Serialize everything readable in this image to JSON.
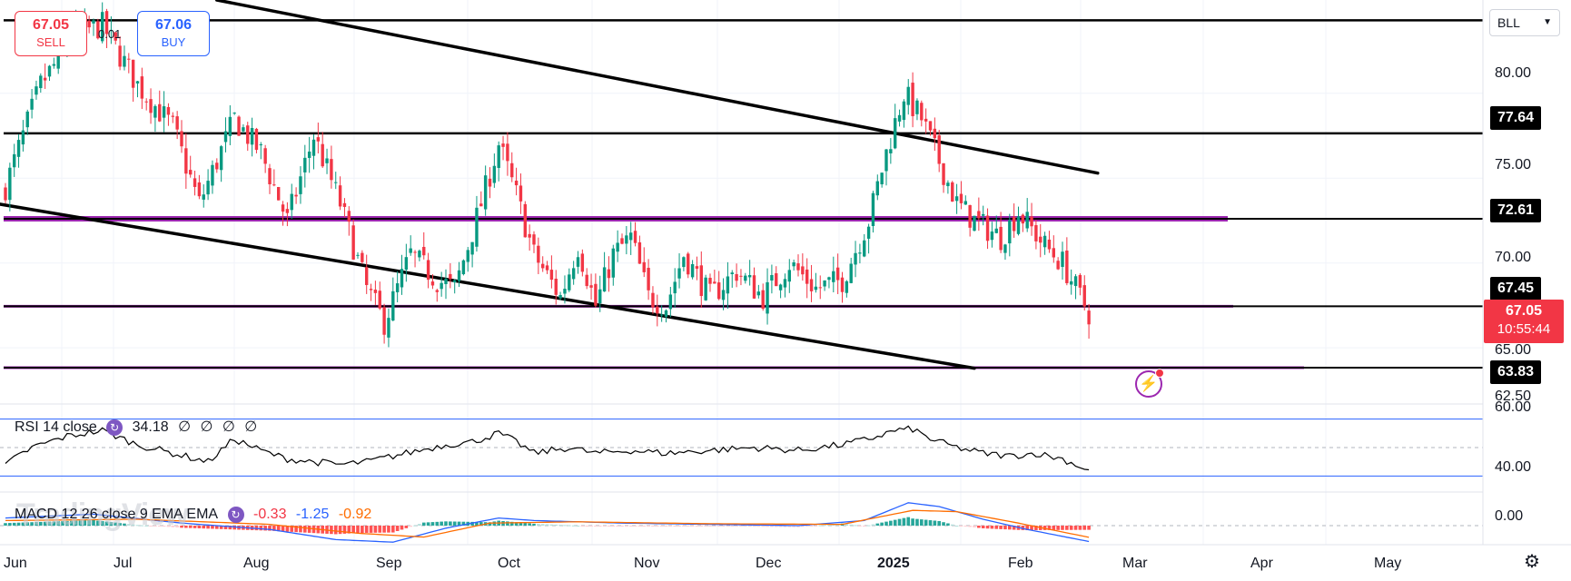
{
  "trade": {
    "sell_price": "67.05",
    "sell_label": "SELL",
    "buy_price": "67.06",
    "buy_label": "BUY",
    "spread": "0.01"
  },
  "symbol": {
    "label": "BLL"
  },
  "price_axis": {
    "labels": [
      {
        "value": 80,
        "text": "80.00"
      },
      {
        "value": 75,
        "text": "75.00"
      },
      {
        "value": 70,
        "text": "70.00"
      },
      {
        "value": 65,
        "text": "65.00"
      },
      {
        "value": 62.5,
        "text": "62.50"
      }
    ],
    "tags": [
      {
        "value": 77.64,
        "text": "77.64"
      },
      {
        "value": 72.61,
        "text": "72.61"
      },
      {
        "value": 67.45,
        "text": "67.45"
      },
      {
        "value": 63.83,
        "text": "63.83"
      }
    ],
    "current": {
      "price": "67.05",
      "countdown": "10:55:44"
    }
  },
  "time_axis": [
    "Jun",
    "Jul",
    "Aug",
    "Sep",
    "Oct",
    "Nov",
    "Dec",
    "2025",
    "Feb",
    "Mar",
    "Apr",
    "May"
  ],
  "rsi": {
    "title": "RSI 14 close",
    "value": "34.18",
    "extras": [
      "∅",
      "∅",
      "∅",
      "∅"
    ],
    "axis": [
      "60.00",
      "40.00"
    ]
  },
  "macd": {
    "title": "MACD 12 26 close 9 EMA EMA",
    "hist": "-0.33",
    "macd": "-1.25",
    "signal": "-0.92",
    "axis": [
      "0.00"
    ]
  },
  "watermark": "TradingView",
  "colors": {
    "up": "#089981",
    "down": "#f23645",
    "purple": "#9c27b0",
    "macd_line": "#2962ff",
    "signal_line": "#ff6d00",
    "rsi_band": "#2962ff"
  },
  "icons": {
    "settings": "gear-icon",
    "alert": "lightning-alert-icon",
    "indicator": "cycle-icon"
  },
  "chart_data": {
    "type": "candlestick",
    "instrument": "BLL",
    "ylim": [
      61.8,
      85.5
    ],
    "x_labels": [
      "Jun",
      "Jul",
      "Aug",
      "Sep",
      "Oct",
      "Nov",
      "Dec",
      "2025",
      "Feb",
      "Mar",
      "Apr",
      "May"
    ],
    "close_keypoints": [
      [
        0,
        74.5
      ],
      [
        8,
        80.5
      ],
      [
        16,
        83.5
      ],
      [
        22,
        84
      ],
      [
        30,
        80.5
      ],
      [
        38,
        78
      ],
      [
        44,
        73.5
      ],
      [
        52,
        78.5
      ],
      [
        58,
        76.5
      ],
      [
        64,
        72.5
      ],
      [
        70,
        77.5
      ],
      [
        76,
        73.5
      ],
      [
        82,
        68.5
      ],
      [
        86,
        66.5
      ],
      [
        92,
        70.5
      ],
      [
        98,
        69
      ],
      [
        102,
        68.5
      ],
      [
        108,
        73.5
      ],
      [
        112,
        77
      ],
      [
        116,
        74
      ],
      [
        120,
        70.5
      ],
      [
        126,
        68
      ],
      [
        130,
        71
      ],
      [
        134,
        67.5
      ],
      [
        138,
        70.5
      ],
      [
        142,
        71.5
      ],
      [
        146,
        68
      ],
      [
        150,
        67.5
      ],
      [
        154,
        70.5
      ],
      [
        160,
        68
      ],
      [
        166,
        69.5
      ],
      [
        172,
        68
      ],
      [
        178,
        70
      ],
      [
        184,
        68.5
      ],
      [
        190,
        69
      ],
      [
        196,
        72.5
      ],
      [
        200,
        76.5
      ],
      [
        204,
        80
      ],
      [
        208,
        78.5
      ],
      [
        212,
        76
      ],
      [
        216,
        73.5
      ],
      [
        220,
        72.5
      ],
      [
        226,
        71.5
      ],
      [
        230,
        73
      ],
      [
        236,
        71
      ],
      [
        240,
        70
      ],
      [
        244,
        68
      ],
      [
        246,
        67.05
      ]
    ],
    "horizontal_lines": [
      {
        "value": 84.3,
        "color": "black"
      },
      {
        "value": 77.64,
        "color": "black"
      },
      {
        "value": 72.61,
        "color": "purple"
      },
      {
        "value": 67.45,
        "color": "purple"
      },
      {
        "value": 63.83,
        "color": "purple"
      }
    ],
    "trendlines": [
      {
        "from": [
          -2,
          73.5
        ],
        "to": [
          220,
          63.8
        ]
      },
      {
        "from": [
          48,
          85.5
        ],
        "to": [
          248,
          75.3
        ]
      }
    ],
    "rsi_keypoints": [
      [
        0,
        38
      ],
      [
        6,
        50
      ],
      [
        14,
        58
      ],
      [
        22,
        62
      ],
      [
        30,
        52
      ],
      [
        38,
        46
      ],
      [
        46,
        40
      ],
      [
        52,
        56
      ],
      [
        58,
        48
      ],
      [
        64,
        42
      ],
      [
        70,
        40
      ],
      [
        76,
        38
      ],
      [
        82,
        40
      ],
      [
        88,
        44
      ],
      [
        94,
        48
      ],
      [
        100,
        52
      ],
      [
        106,
        54
      ],
      [
        112,
        60
      ],
      [
        116,
        54
      ],
      [
        120,
        46
      ],
      [
        128,
        50
      ],
      [
        134,
        46
      ],
      [
        142,
        48
      ],
      [
        150,
        46
      ],
      [
        160,
        48
      ],
      [
        170,
        50
      ],
      [
        180,
        48
      ],
      [
        190,
        52
      ],
      [
        196,
        56
      ],
      [
        202,
        62
      ],
      [
        206,
        63
      ],
      [
        210,
        56
      ],
      [
        216,
        50
      ],
      [
        222,
        46
      ],
      [
        228,
        44
      ],
      [
        234,
        46
      ],
      [
        240,
        42
      ],
      [
        246,
        34
      ]
    ],
    "rsi_bands": [
      70,
      30
    ],
    "macd_keypoints": [
      [
        0,
        0.6
      ],
      [
        20,
        0.9
      ],
      [
        40,
        0.2
      ],
      [
        60,
        -0.3
      ],
      [
        75,
        -1.1
      ],
      [
        88,
        -1.3
      ],
      [
        100,
        -0.2
      ],
      [
        112,
        0.6
      ],
      [
        120,
        0.4
      ],
      [
        140,
        0.2
      ],
      [
        160,
        0.1
      ],
      [
        180,
        0.0
      ],
      [
        195,
        0.4
      ],
      [
        205,
        1.8
      ],
      [
        212,
        1.5
      ],
      [
        222,
        0.5
      ],
      [
        232,
        -0.3
      ],
      [
        246,
        -1.25
      ]
    ],
    "signal_keypoints": [
      [
        0,
        0.4
      ],
      [
        30,
        0.5
      ],
      [
        60,
        0.1
      ],
      [
        80,
        -0.6
      ],
      [
        95,
        -0.9
      ],
      [
        110,
        0.2
      ],
      [
        130,
        0.3
      ],
      [
        160,
        0.15
      ],
      [
        190,
        0.1
      ],
      [
        206,
        1.2
      ],
      [
        216,
        1.1
      ],
      [
        230,
        0.2
      ],
      [
        246,
        -0.92
      ]
    ]
  }
}
